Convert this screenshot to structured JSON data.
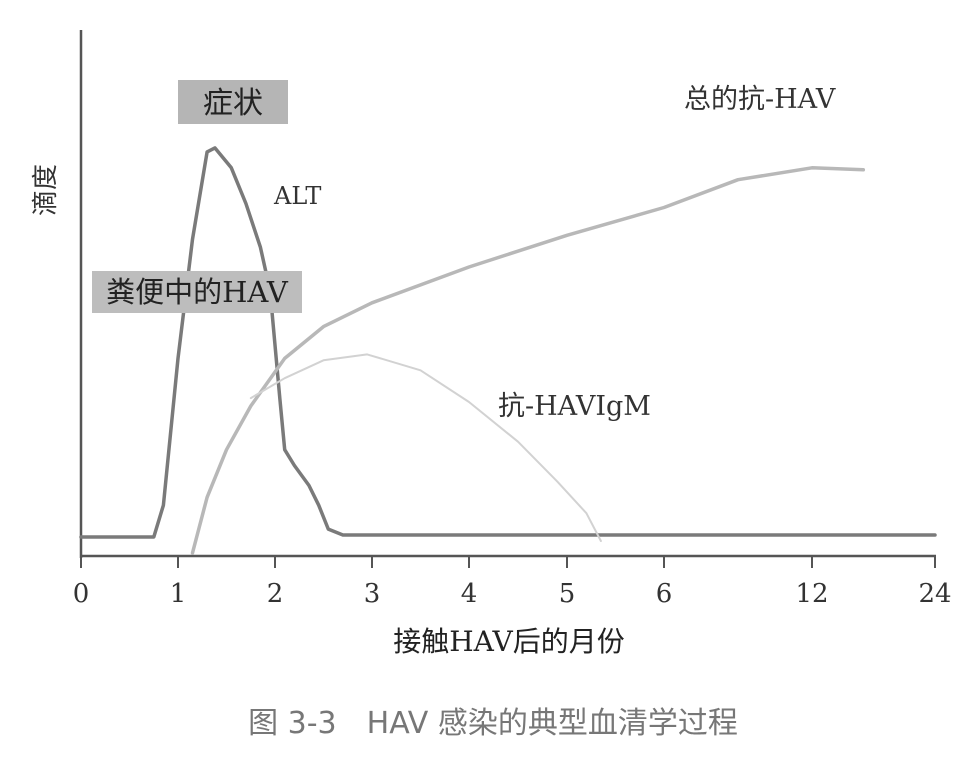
{
  "chart_data": {
    "type": "line",
    "title": "",
    "caption": "图 3-3　HAV 感染的典型血清学过程",
    "xlabel": "接触HAV后的月份",
    "ylabel": "滴度",
    "x_ticks": [
      "0",
      "1",
      "2",
      "3",
      "4",
      "5",
      "6",
      "12",
      "24"
    ],
    "x_axis_note": "non-linear month axis (6 to 24 compressed)",
    "ylim": [
      0,
      100
    ],
    "y_ticks_shown": false,
    "grid": false,
    "highlight_boxes": [
      {
        "label": "症状"
      },
      {
        "label": "粪便中的HAV"
      }
    ],
    "series": [
      {
        "name": "ALT",
        "color": "#7a7a7a",
        "points": [
          [
            0,
            0
          ],
          [
            0.75,
            0
          ],
          [
            0.85,
            8
          ],
          [
            1.0,
            45
          ],
          [
            1.15,
            75
          ],
          [
            1.3,
            97
          ],
          [
            1.38,
            98
          ],
          [
            1.55,
            93
          ],
          [
            1.7,
            84
          ],
          [
            1.85,
            73
          ],
          [
            1.95,
            62
          ],
          [
            2.05,
            35
          ],
          [
            2.1,
            22
          ],
          [
            2.2,
            18
          ],
          [
            2.35,
            13
          ],
          [
            2.45,
            8
          ],
          [
            2.55,
            2
          ],
          [
            2.7,
            0.5
          ],
          [
            24,
            0.5
          ]
        ]
      },
      {
        "name": "总的抗-HAV",
        "color": "#b8b8b8",
        "points": [
          [
            1.15,
            -4
          ],
          [
            1.3,
            10
          ],
          [
            1.5,
            22
          ],
          [
            1.75,
            33
          ],
          [
            2.1,
            45
          ],
          [
            2.5,
            53
          ],
          [
            3,
            59
          ],
          [
            4,
            68
          ],
          [
            5,
            76
          ],
          [
            6,
            83
          ],
          [
            9,
            90
          ],
          [
            12,
            93
          ],
          [
            17,
            92.5
          ]
        ]
      },
      {
        "name": "抗-HAVIgM",
        "color": "#d2d2d2",
        "points": [
          [
            1.75,
            35
          ],
          [
            2.1,
            40
          ],
          [
            2.5,
            44.5
          ],
          [
            2.95,
            46
          ],
          [
            3.5,
            42
          ],
          [
            4.0,
            34
          ],
          [
            4.5,
            24
          ],
          [
            4.9,
            14
          ],
          [
            5.2,
            6
          ],
          [
            5.35,
            -1
          ]
        ]
      }
    ]
  }
}
